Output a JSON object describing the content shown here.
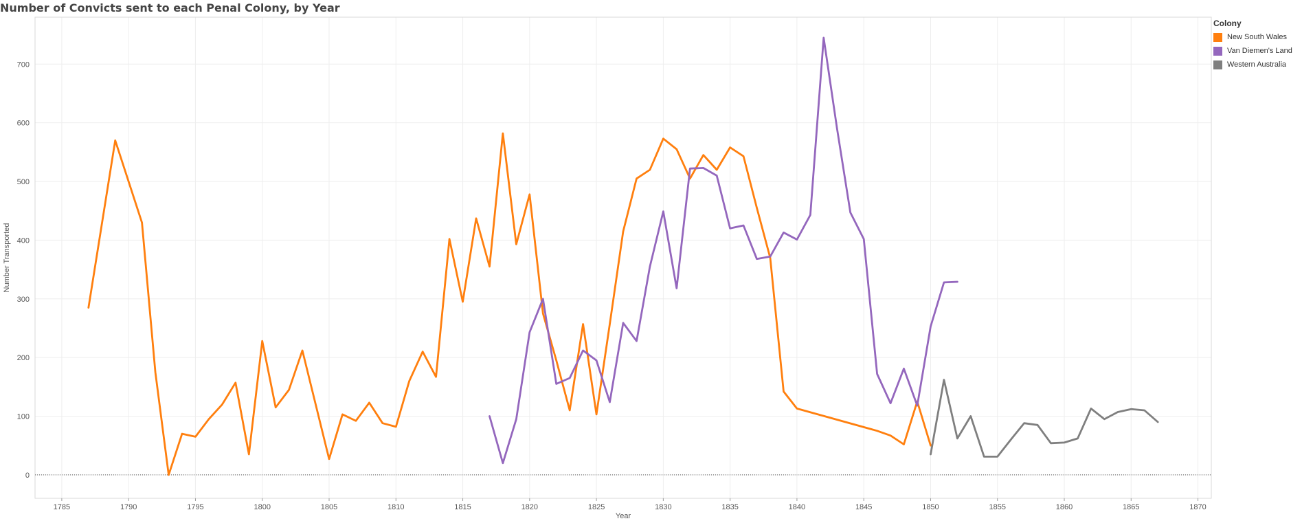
{
  "chart_data": {
    "type": "line",
    "title": "Number of Convicts sent to each Penal Colony, by Year",
    "xlabel": "Year",
    "ylabel": "Number Transported",
    "xlim": [
      1783,
      1871
    ],
    "ylim": [
      -40,
      780
    ],
    "x_ticks": [
      1785,
      1790,
      1795,
      1800,
      1805,
      1810,
      1815,
      1820,
      1825,
      1830,
      1835,
      1840,
      1845,
      1850,
      1855,
      1860,
      1865,
      1870
    ],
    "y_ticks": [
      0,
      100,
      200,
      300,
      400,
      500,
      600,
      700
    ],
    "grid": true,
    "zero_line": "dotted",
    "legend_position": "right",
    "legend_title": "Colony",
    "series": [
      {
        "name": "New South Wales",
        "color": "#ff7f0e",
        "x": [
          1787,
          1789,
          1791,
          1792,
          1793,
          1794,
          1795,
          1796,
          1797,
          1798,
          1799,
          1800,
          1801,
          1802,
          1803,
          1805,
          1806,
          1807,
          1808,
          1809,
          1810,
          1811,
          1812,
          1813,
          1814,
          1815,
          1816,
          1817,
          1818,
          1819,
          1820,
          1821,
          1822,
          1823,
          1824,
          1825,
          1826,
          1827,
          1828,
          1829,
          1830,
          1831,
          1832,
          1833,
          1834,
          1835,
          1836,
          1837,
          1838,
          1839,
          1840,
          1846,
          1847,
          1848,
          1849,
          1850
        ],
        "values": [
          285,
          570,
          430,
          175,
          0,
          70,
          65,
          95,
          120,
          157,
          35,
          228,
          115,
          145,
          212,
          27,
          103,
          92,
          123,
          88,
          82,
          160,
          210,
          167,
          402,
          295,
          437,
          355,
          582,
          393,
          478,
          275,
          195,
          110,
          257,
          103,
          257,
          415,
          505,
          520,
          573,
          555,
          505,
          545,
          520,
          558,
          543,
          455,
          370,
          142,
          113,
          75,
          67,
          52,
          125,
          50
        ]
      },
      {
        "name": "Van Diemen's Land",
        "color": "#9467bd",
        "x": [
          1817,
          1818,
          1819,
          1820,
          1821,
          1822,
          1823,
          1824,
          1825,
          1826,
          1827,
          1828,
          1829,
          1830,
          1831,
          1832,
          1833,
          1834,
          1835,
          1836,
          1837,
          1838,
          1839,
          1840,
          1841,
          1842,
          1843,
          1844,
          1845,
          1846,
          1847,
          1848,
          1849,
          1850,
          1851,
          1852
        ],
        "values": [
          100,
          20,
          95,
          243,
          300,
          155,
          165,
          212,
          195,
          124,
          259,
          228,
          355,
          449,
          318,
          522,
          523,
          510,
          420,
          425,
          368,
          372,
          413,
          401,
          443,
          745,
          590,
          447,
          402,
          172,
          122,
          181,
          118,
          253,
          328,
          329
        ]
      },
      {
        "name": "Western Australia",
        "color": "#7f7f7f",
        "x": [
          1850,
          1851,
          1852,
          1853,
          1854,
          1855,
          1856,
          1857,
          1858,
          1859,
          1860,
          1861,
          1862,
          1863,
          1864,
          1865,
          1866,
          1867
        ],
        "values": [
          35,
          162,
          62,
          100,
          31,
          31,
          60,
          88,
          85,
          54,
          55,
          62,
          113,
          95,
          107,
          112,
          110,
          90
        ]
      }
    ]
  }
}
